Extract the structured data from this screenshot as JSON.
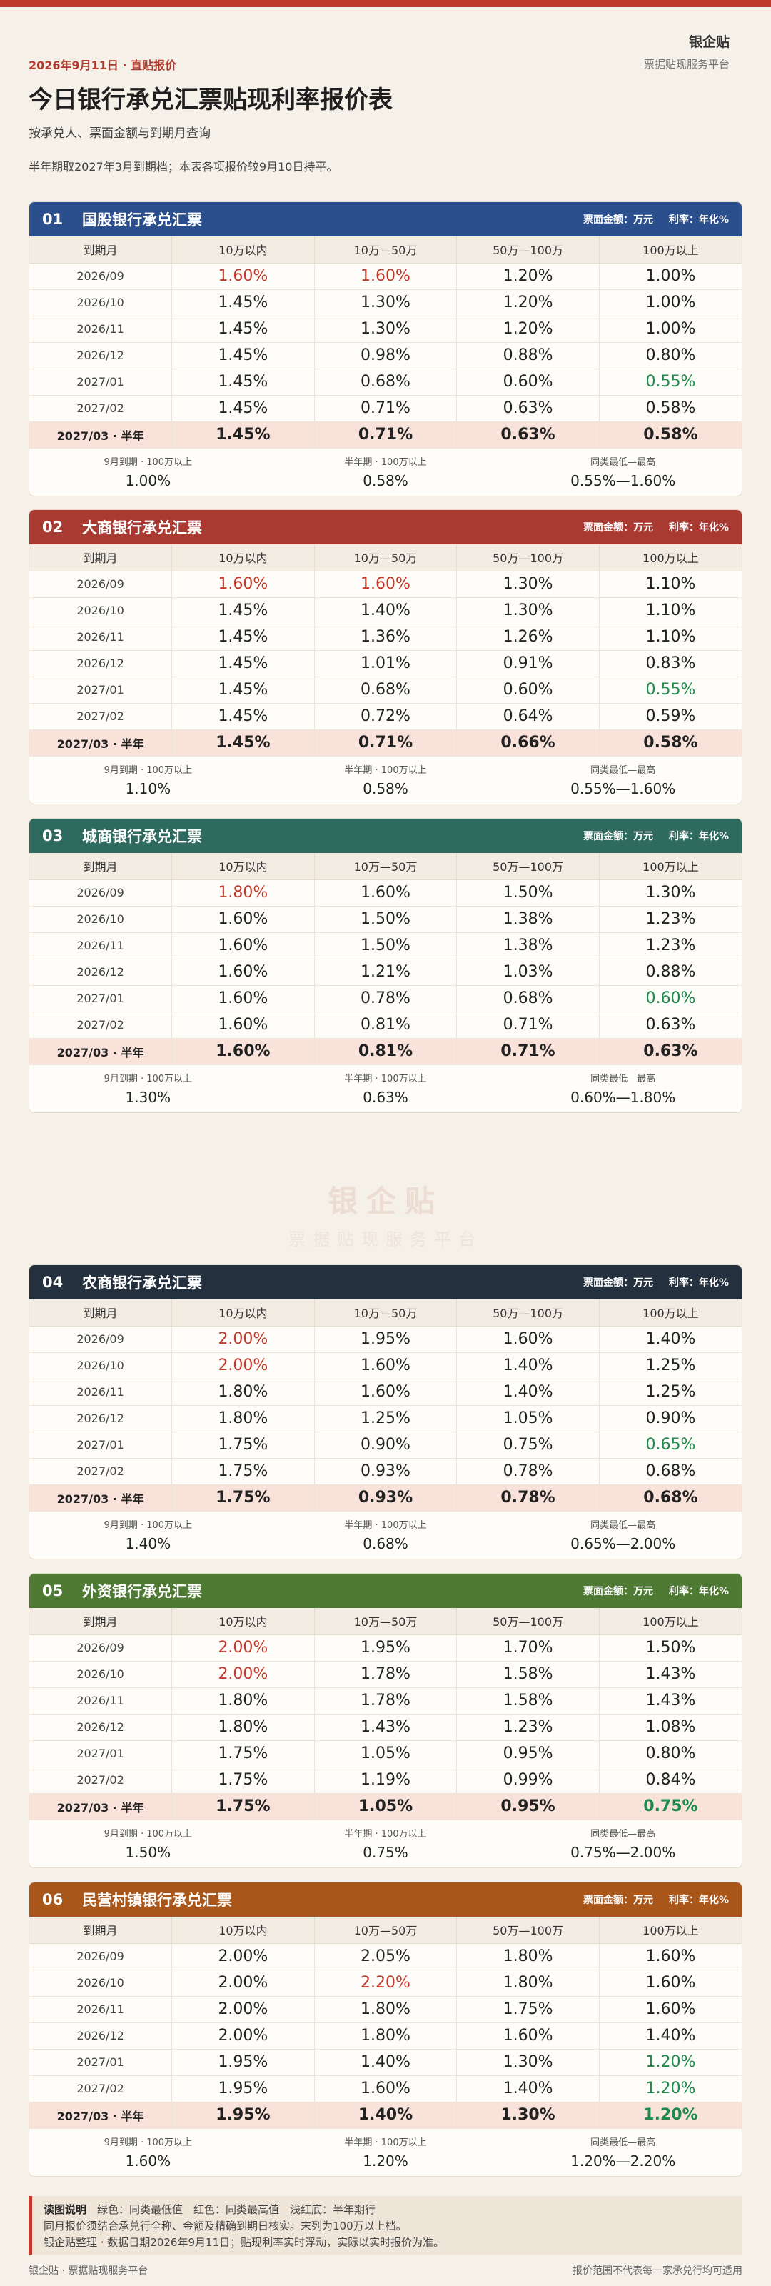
{
  "header": {
    "brand_name": "银企贴",
    "brand_sub": "票据贴现服务平台",
    "date_line": "2026年9月11日 · 直贴报价",
    "title": "今日银行承兑汇票贴现利率报价表",
    "subtitle": "按承兑人、票面金额与到期月查询",
    "note": "半年期取2027年3月到期档；本表各项报价较9月10日持平。"
  },
  "colors": {
    "accent": "#c0392b",
    "low": "#1e8a4c",
    "high": "#c0392b",
    "half_row": "#f8e2da"
  },
  "columns": [
    "到期月",
    "10万以内",
    "10万—50万",
    "50万—100万",
    "100万以上"
  ],
  "sections": [
    {
      "num": "01",
      "title": "国股银行承兑汇票",
      "color": "#2b4f8c",
      "rows": [
        {
          "m": "2026/09",
          "v": [
            "1.60%",
            "1.60%",
            "1.20%",
            "1.00%"
          ],
          "c": [
            "red",
            "red",
            "",
            ""
          ]
        },
        {
          "m": "2026/10",
          "v": [
            "1.45%",
            "1.30%",
            "1.20%",
            "1.00%"
          ],
          "c": [
            "",
            "",
            "",
            ""
          ]
        },
        {
          "m": "2026/11",
          "v": [
            "1.45%",
            "1.30%",
            "1.20%",
            "1.00%"
          ],
          "c": [
            "",
            "",
            "",
            ""
          ]
        },
        {
          "m": "2026/12",
          "v": [
            "1.45%",
            "0.98%",
            "0.88%",
            "0.80%"
          ],
          "c": [
            "",
            "",
            "",
            ""
          ]
        },
        {
          "m": "2027/01",
          "v": [
            "1.45%",
            "0.68%",
            "0.60%",
            "0.55%"
          ],
          "c": [
            "",
            "",
            "",
            "green"
          ]
        },
        {
          "m": "2027/02",
          "v": [
            "1.45%",
            "0.71%",
            "0.63%",
            "0.58%"
          ],
          "c": [
            "",
            "",
            "",
            ""
          ]
        },
        {
          "m": "2027/03 · 半年",
          "v": [
            "1.45%",
            "0.71%",
            "0.63%",
            "0.58%"
          ],
          "c": [
            "",
            "",
            "",
            ""
          ],
          "half": true
        }
      ],
      "summary": [
        {
          "label": "9月到期 · 100万以上",
          "value": "1.00%"
        },
        {
          "label": "半年期 · 100万以上",
          "value": "0.58%"
        },
        {
          "label": "同类最低—最高",
          "value": "0.55%—1.60%"
        }
      ]
    },
    {
      "num": "02",
      "title": "大商银行承兑汇票",
      "color": "#a83a32",
      "rows": [
        {
          "m": "2026/09",
          "v": [
            "1.60%",
            "1.60%",
            "1.30%",
            "1.10%"
          ],
          "c": [
            "red",
            "red",
            "",
            ""
          ]
        },
        {
          "m": "2026/10",
          "v": [
            "1.45%",
            "1.40%",
            "1.30%",
            "1.10%"
          ],
          "c": [
            "",
            "",
            "",
            ""
          ]
        },
        {
          "m": "2026/11",
          "v": [
            "1.45%",
            "1.36%",
            "1.26%",
            "1.10%"
          ],
          "c": [
            "",
            "",
            "",
            ""
          ]
        },
        {
          "m": "2026/12",
          "v": [
            "1.45%",
            "1.01%",
            "0.91%",
            "0.83%"
          ],
          "c": [
            "",
            "",
            "",
            ""
          ]
        },
        {
          "m": "2027/01",
          "v": [
            "1.45%",
            "0.68%",
            "0.60%",
            "0.55%"
          ],
          "c": [
            "",
            "",
            "",
            "green"
          ]
        },
        {
          "m": "2027/02",
          "v": [
            "1.45%",
            "0.72%",
            "0.64%",
            "0.59%"
          ],
          "c": [
            "",
            "",
            "",
            ""
          ]
        },
        {
          "m": "2027/03 · 半年",
          "v": [
            "1.45%",
            "0.71%",
            "0.66%",
            "0.58%"
          ],
          "c": [
            "",
            "",
            "",
            ""
          ],
          "half": true
        }
      ],
      "summary": [
        {
          "label": "9月到期 · 100万以上",
          "value": "1.10%"
        },
        {
          "label": "半年期 · 100万以上",
          "value": "0.58%"
        },
        {
          "label": "同类最低—最高",
          "value": "0.55%—1.60%"
        }
      ]
    },
    {
      "num": "03",
      "title": "城商银行承兑汇票",
      "color": "#2e6b5e",
      "rows": [
        {
          "m": "2026/09",
          "v": [
            "1.80%",
            "1.60%",
            "1.50%",
            "1.30%"
          ],
          "c": [
            "red",
            "",
            "",
            ""
          ]
        },
        {
          "m": "2026/10",
          "v": [
            "1.60%",
            "1.50%",
            "1.38%",
            "1.23%"
          ],
          "c": [
            "",
            "",
            "",
            ""
          ]
        },
        {
          "m": "2026/11",
          "v": [
            "1.60%",
            "1.50%",
            "1.38%",
            "1.23%"
          ],
          "c": [
            "",
            "",
            "",
            ""
          ]
        },
        {
          "m": "2026/12",
          "v": [
            "1.60%",
            "1.21%",
            "1.03%",
            "0.88%"
          ],
          "c": [
            "",
            "",
            "",
            ""
          ]
        },
        {
          "m": "2027/01",
          "v": [
            "1.60%",
            "0.78%",
            "0.68%",
            "0.60%"
          ],
          "c": [
            "",
            "",
            "",
            "green"
          ]
        },
        {
          "m": "2027/02",
          "v": [
            "1.60%",
            "0.81%",
            "0.71%",
            "0.63%"
          ],
          "c": [
            "",
            "",
            "",
            ""
          ]
        },
        {
          "m": "2027/03 · 半年",
          "v": [
            "1.60%",
            "0.81%",
            "0.71%",
            "0.63%"
          ],
          "c": [
            "",
            "",
            "",
            ""
          ],
          "half": true
        }
      ],
      "summary": [
        {
          "label": "9月到期 · 100万以上",
          "value": "1.30%"
        },
        {
          "label": "半年期 · 100万以上",
          "value": "0.63%"
        },
        {
          "label": "同类最低—最高",
          "value": "0.60%—1.80%"
        }
      ]
    },
    {
      "num": "04",
      "title": "农商银行承兑汇票",
      "color": "#25303f",
      "rows": [
        {
          "m": "2026/09",
          "v": [
            "2.00%",
            "1.95%",
            "1.60%",
            "1.40%"
          ],
          "c": [
            "red",
            "",
            "",
            ""
          ]
        },
        {
          "m": "2026/10",
          "v": [
            "2.00%",
            "1.60%",
            "1.40%",
            "1.25%"
          ],
          "c": [
            "red",
            "",
            "",
            ""
          ]
        },
        {
          "m": "2026/11",
          "v": [
            "1.80%",
            "1.60%",
            "1.40%",
            "1.25%"
          ],
          "c": [
            "",
            "",
            "",
            ""
          ]
        },
        {
          "m": "2026/12",
          "v": [
            "1.80%",
            "1.25%",
            "1.05%",
            "0.90%"
          ],
          "c": [
            "",
            "",
            "",
            ""
          ]
        },
        {
          "m": "2027/01",
          "v": [
            "1.75%",
            "0.90%",
            "0.75%",
            "0.65%"
          ],
          "c": [
            "",
            "",
            "",
            "green"
          ]
        },
        {
          "m": "2027/02",
          "v": [
            "1.75%",
            "0.93%",
            "0.78%",
            "0.68%"
          ],
          "c": [
            "",
            "",
            "",
            ""
          ]
        },
        {
          "m": "2027/03 · 半年",
          "v": [
            "1.75%",
            "0.93%",
            "0.78%",
            "0.68%"
          ],
          "c": [
            "",
            "",
            "",
            ""
          ],
          "half": true
        }
      ],
      "summary": [
        {
          "label": "9月到期 · 100万以上",
          "value": "1.40%"
        },
        {
          "label": "半年期 · 100万以上",
          "value": "0.68%"
        },
        {
          "label": "同类最低—最高",
          "value": "0.65%—2.00%"
        }
      ]
    },
    {
      "num": "05",
      "title": "外资银行承兑汇票",
      "color": "#4e7a34",
      "rows": [
        {
          "m": "2026/09",
          "v": [
            "2.00%",
            "1.95%",
            "1.70%",
            "1.50%"
          ],
          "c": [
            "red",
            "",
            "",
            ""
          ]
        },
        {
          "m": "2026/10",
          "v": [
            "2.00%",
            "1.78%",
            "1.58%",
            "1.43%"
          ],
          "c": [
            "red",
            "",
            "",
            ""
          ]
        },
        {
          "m": "2026/11",
          "v": [
            "1.80%",
            "1.78%",
            "1.58%",
            "1.43%"
          ],
          "c": [
            "",
            "",
            "",
            ""
          ]
        },
        {
          "m": "2026/12",
          "v": [
            "1.80%",
            "1.43%",
            "1.23%",
            "1.08%"
          ],
          "c": [
            "",
            "",
            "",
            ""
          ]
        },
        {
          "m": "2027/01",
          "v": [
            "1.75%",
            "1.05%",
            "0.95%",
            "0.80%"
          ],
          "c": [
            "",
            "",
            "",
            ""
          ]
        },
        {
          "m": "2027/02",
          "v": [
            "1.75%",
            "1.19%",
            "0.99%",
            "0.84%"
          ],
          "c": [
            "",
            "",
            "",
            ""
          ]
        },
        {
          "m": "2027/03 · 半年",
          "v": [
            "1.75%",
            "1.05%",
            "0.95%",
            "0.75%"
          ],
          "c": [
            "",
            "",
            "",
            "green"
          ],
          "half": true
        }
      ],
      "summary": [
        {
          "label": "9月到期 · 100万以上",
          "value": "1.50%"
        },
        {
          "label": "半年期 · 100万以上",
          "value": "0.75%"
        },
        {
          "label": "同类最低—最高",
          "value": "0.75%—2.00%"
        }
      ]
    },
    {
      "num": "06",
      "title": "民营村镇银行承兑汇票",
      "color": "#a8561a",
      "rows": [
        {
          "m": "2026/09",
          "v": [
            "2.00%",
            "2.05%",
            "1.80%",
            "1.60%"
          ],
          "c": [
            "",
            "",
            "",
            ""
          ]
        },
        {
          "m": "2026/10",
          "v": [
            "2.00%",
            "2.20%",
            "1.80%",
            "1.60%"
          ],
          "c": [
            "",
            "red",
            "",
            ""
          ]
        },
        {
          "m": "2026/11",
          "v": [
            "2.00%",
            "1.80%",
            "1.75%",
            "1.60%"
          ],
          "c": [
            "",
            "",
            "",
            ""
          ]
        },
        {
          "m": "2026/12",
          "v": [
            "2.00%",
            "1.80%",
            "1.60%",
            "1.40%"
          ],
          "c": [
            "",
            "",
            "",
            ""
          ]
        },
        {
          "m": "2027/01",
          "v": [
            "1.95%",
            "1.40%",
            "1.30%",
            "1.20%"
          ],
          "c": [
            "",
            "",
            "",
            "green"
          ]
        },
        {
          "m": "2027/02",
          "v": [
            "1.95%",
            "1.60%",
            "1.40%",
            "1.20%"
          ],
          "c": [
            "",
            "",
            "",
            "green"
          ]
        },
        {
          "m": "2027/03 · 半年",
          "v": [
            "1.95%",
            "1.40%",
            "1.30%",
            "1.20%"
          ],
          "c": [
            "",
            "",
            "",
            "green"
          ],
          "half": true
        }
      ],
      "summary": [
        {
          "label": "9月到期 · 100万以上",
          "value": "1.60%"
        },
        {
          "label": "半年期 · 100万以上",
          "value": "1.20%"
        },
        {
          "label": "同类最低—最高",
          "value": "1.20%—2.20%"
        }
      ]
    }
  ],
  "section_meta": {
    "amount": "票面金额：万元",
    "rate": "利率：年化%"
  },
  "watermark": {
    "main": "银企贴",
    "sub": "票据贴现服务平台"
  },
  "legend": {
    "title": "读图说明",
    "line1": "绿色：同类最低值　红色：同类最高值　浅红底：半年期行",
    "line2": "同月报价须结合承兑行全称、金额及精确到期日核实。末列为100万以上档。",
    "line3": "银企贴整理 · 数据日期2026年9月11日；贴现利率实时浮动，实际以实时报价为准。"
  },
  "footer": {
    "left": "银企贴 · 票据贴现服务平台",
    "right": "报价范围不代表每一家承兑行均可适用"
  }
}
